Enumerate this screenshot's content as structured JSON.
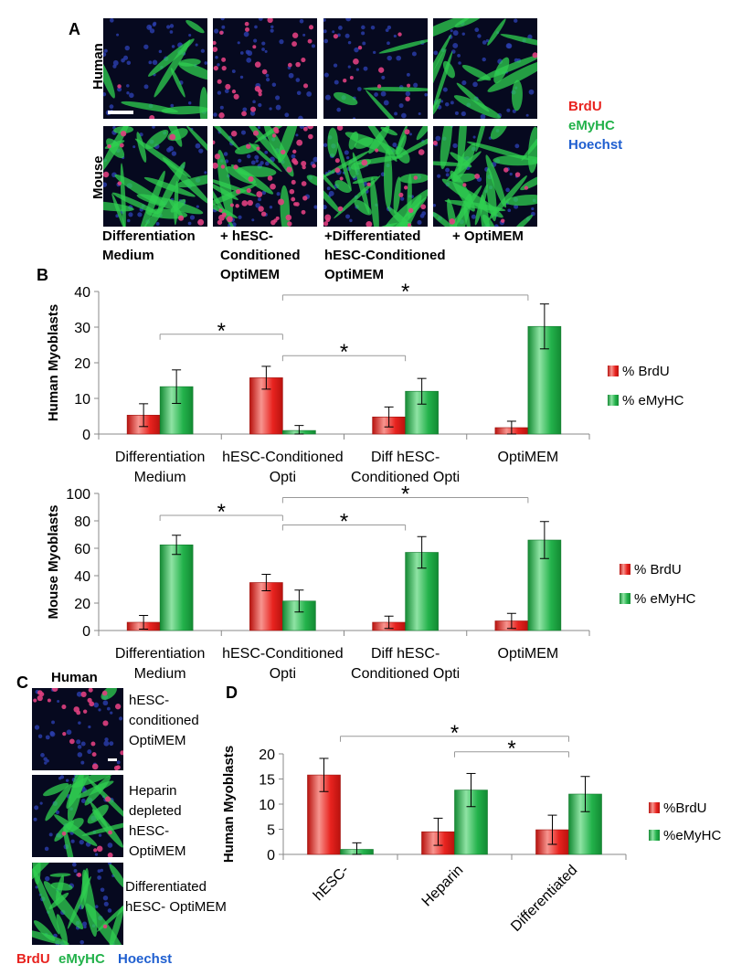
{
  "colors": {
    "brdu": "#e8231f",
    "emyhc": "#23b24b",
    "hoechst": "#1f5fd0",
    "cell_bg": "#06091f"
  },
  "panel_a": {
    "label": "A",
    "rows": [
      "Human",
      "Mouse"
    ],
    "conditions": [
      "Differentiation\nMedium",
      "+ hESC-\nConditioned\nOptiMEM",
      "+Differentiated\nhESC-Conditioned\nOptiMEM",
      "+ OptiMEM"
    ],
    "stain_legend": [
      "BrdU",
      "eMyHC",
      "Hoechst"
    ]
  },
  "panel_b": {
    "label": "B"
  },
  "panel_c": {
    "label": "C",
    "title": "Human",
    "images": [
      "hESC-\nconditioned\nOptiMEM",
      "Heparin\ndepleted\nhESC-\nOptiMEM",
      "Differentiated\nhESC- OptiMEM"
    ],
    "stain_legend": [
      "BrdU",
      "eMyHC",
      "Hoechst"
    ]
  },
  "panel_d": {
    "label": "D"
  },
  "chart_data": [
    {
      "id": "b_human",
      "type": "bar",
      "ylabel": "Human Myoblasts",
      "ylim": [
        0,
        40
      ],
      "yticks": [
        0,
        10,
        20,
        30,
        40
      ],
      "categories": [
        "Differentiation\nMedium",
        "hESC-Conditioned\nOpti",
        "Diff hESC-\nConditioned Opti",
        "OptiMEM"
      ],
      "series": [
        {
          "name": "% BrdU",
          "values": [
            5.3,
            15.8,
            4.8,
            1.8
          ],
          "errors": [
            3.2,
            3.2,
            2.8,
            1.8
          ]
        },
        {
          "name": "% eMyHC",
          "values": [
            13.3,
            1.0,
            12.0,
            30.2
          ],
          "errors": [
            4.7,
            1.4,
            3.6,
            6.3
          ]
        }
      ],
      "significance": [
        {
          "from": 0,
          "to": 1,
          "label": "*",
          "level": 28
        },
        {
          "from": 1,
          "to": 3,
          "label": "*",
          "level": 39
        },
        {
          "from": 1,
          "to": 2,
          "label": "*",
          "level": 22
        }
      ],
      "legend_position": "right"
    },
    {
      "id": "b_mouse",
      "type": "bar",
      "ylabel": "Mouse Myoblasts",
      "ylim": [
        0,
        100
      ],
      "yticks": [
        0,
        20,
        40,
        60,
        80,
        100
      ],
      "categories": [
        "Differentiation\nMedium",
        "hESC-Conditioned\nOpti",
        "Diff hESC-\nConditioned Opti",
        "OptiMEM"
      ],
      "series": [
        {
          "name": "% BrdU",
          "values": [
            6,
            35,
            6,
            7
          ],
          "errors": [
            5,
            6,
            4.5,
            5.5
          ]
        },
        {
          "name": "% eMyHC",
          "values": [
            62.5,
            21.5,
            57,
            66
          ],
          "errors": [
            7,
            8,
            11.5,
            13.5
          ]
        }
      ],
      "significance": [
        {
          "from": 0,
          "to": 1,
          "label": "*",
          "level": 84
        },
        {
          "from": 1,
          "to": 3,
          "label": "*",
          "level": 97
        },
        {
          "from": 1,
          "to": 2,
          "label": "*",
          "level": 77
        }
      ],
      "legend_position": "right"
    },
    {
      "id": "d_human",
      "type": "bar",
      "ylabel": "Human Myoblasts",
      "ylim": [
        0,
        20
      ],
      "yticks": [
        0,
        5,
        10,
        15,
        20
      ],
      "categories": [
        "hESC-",
        "Heparin",
        "Differentiated"
      ],
      "series": [
        {
          "name": "%BrdU",
          "values": [
            15.8,
            4.5,
            4.9
          ],
          "errors": [
            3.3,
            2.7,
            2.9
          ]
        },
        {
          "name": "%eMyHC",
          "values": [
            1.0,
            12.8,
            12.0
          ],
          "errors": [
            1.3,
            3.3,
            3.5
          ]
        }
      ],
      "significance": [
        {
          "from": 0,
          "to": 2,
          "label": "*",
          "level": 23.5
        },
        {
          "from": 1,
          "to": 2,
          "label": "*",
          "level": 20.4
        }
      ],
      "legend_position": "right"
    }
  ]
}
